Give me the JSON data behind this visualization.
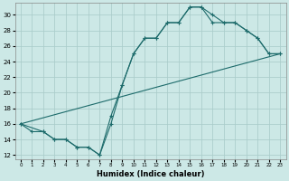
{
  "xlabel": "Humidex (Indice chaleur)",
  "background_color": "#cce8e6",
  "grid_color": "#aaccca",
  "line_color": "#1d6b6b",
  "xlim": [
    -0.5,
    23.5
  ],
  "ylim": [
    11.5,
    31.5
  ],
  "xticks": [
    0,
    1,
    2,
    3,
    4,
    5,
    6,
    7,
    8,
    9,
    10,
    11,
    12,
    13,
    14,
    15,
    16,
    17,
    18,
    19,
    20,
    21,
    22,
    23
  ],
  "yticks": [
    12,
    14,
    16,
    18,
    20,
    22,
    24,
    26,
    28,
    30
  ],
  "line1_x": [
    0,
    1,
    2,
    3,
    4,
    5,
    6,
    7,
    8,
    9,
    10,
    11,
    12,
    13,
    14,
    15,
    16,
    17,
    18,
    19,
    20,
    21,
    22,
    23
  ],
  "line1_y": [
    16,
    15,
    15,
    14,
    14,
    13,
    13,
    12,
    16,
    21,
    25,
    27,
    27,
    29,
    29,
    31,
    31,
    30,
    29,
    29,
    28,
    27,
    25,
    25
  ],
  "line2_x": [
    0,
    2,
    3,
    4,
    5,
    6,
    7,
    8,
    9,
    10,
    11,
    12,
    13,
    14,
    15,
    16,
    17,
    18,
    19,
    20,
    21,
    22,
    23
  ],
  "line2_y": [
    16,
    15,
    14,
    14,
    13,
    13,
    12,
    17,
    21,
    25,
    27,
    27,
    29,
    29,
    31,
    31,
    29,
    29,
    29,
    28,
    27,
    25,
    25
  ],
  "line3_x": [
    0,
    23
  ],
  "line3_y": [
    16,
    25
  ]
}
